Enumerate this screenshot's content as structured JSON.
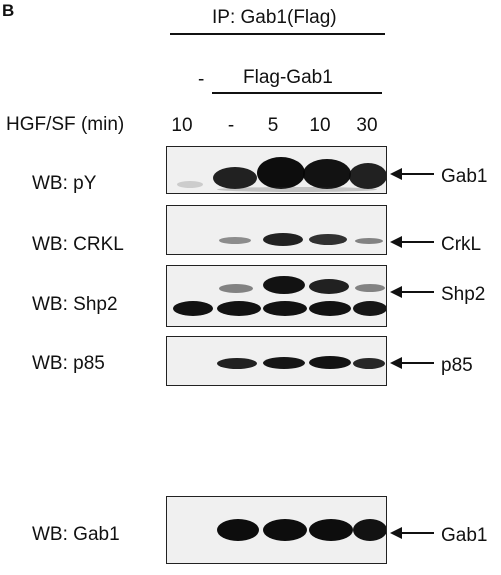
{
  "panel_letter": "B",
  "ip_label": "IP: Gab1(Flag)",
  "condition": {
    "control": "-",
    "construct": "Flag-Gab1"
  },
  "treatment_label": "HGF/SF (min)",
  "lanes": [
    "10",
    "-",
    "5",
    "10",
    "30"
  ],
  "blots": [
    {
      "wb": "WB: pY",
      "protein": "Gab1"
    },
    {
      "wb": "WB: CRKL",
      "protein": "CrkL"
    },
    {
      "wb": "WB: Shp2",
      "protein": "Shp2"
    },
    {
      "wb": "WB: p85",
      "protein": "p85"
    },
    {
      "wb": "WB: Gab1",
      "protein": "Gab1"
    }
  ]
}
